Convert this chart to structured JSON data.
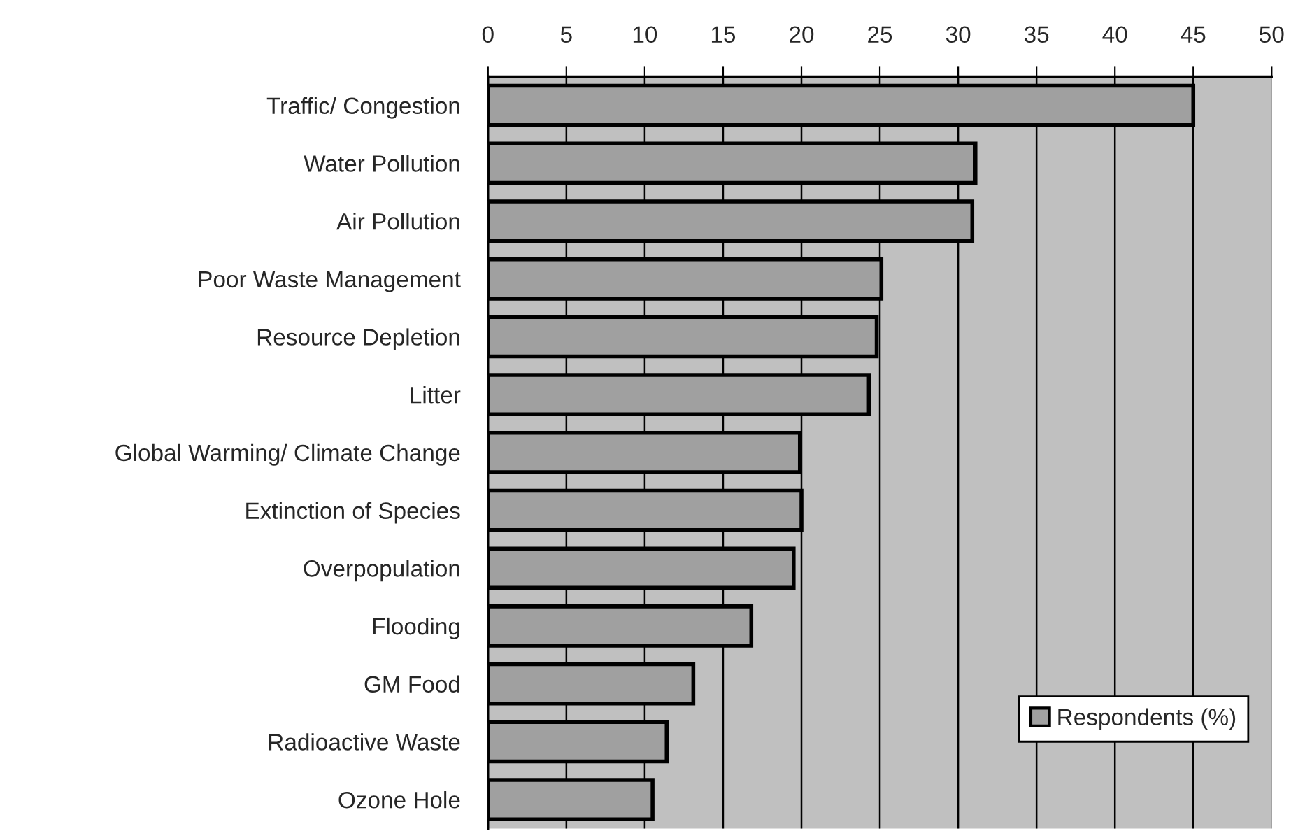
{
  "chart_data": {
    "type": "bar",
    "orientation": "horizontal",
    "categories": [
      "Traffic/ Congestion",
      "Water Pollution",
      "Air Pollution",
      "Poor Waste Management",
      "Resource Depletion",
      "Litter",
      "Global Warming/ Climate Change",
      "Extinction of Species",
      "Overpopulation",
      "Flooding",
      "GM Food",
      "Radioactive Waste",
      "Ozone Hole"
    ],
    "series": [
      {
        "name": "Respondents (%)",
        "color": "#a0a0a0",
        "values": [
          45.0,
          31.1,
          30.9,
          25.1,
          24.8,
          24.3,
          19.9,
          20.0,
          19.5,
          16.8,
          13.1,
          11.4,
          10.5
        ]
      }
    ],
    "xlim": [
      0,
      50
    ],
    "xticks": [
      0,
      5,
      10,
      15,
      20,
      25,
      30,
      35,
      40,
      45,
      50
    ],
    "grid": "x",
    "legend": "bottom right"
  }
}
